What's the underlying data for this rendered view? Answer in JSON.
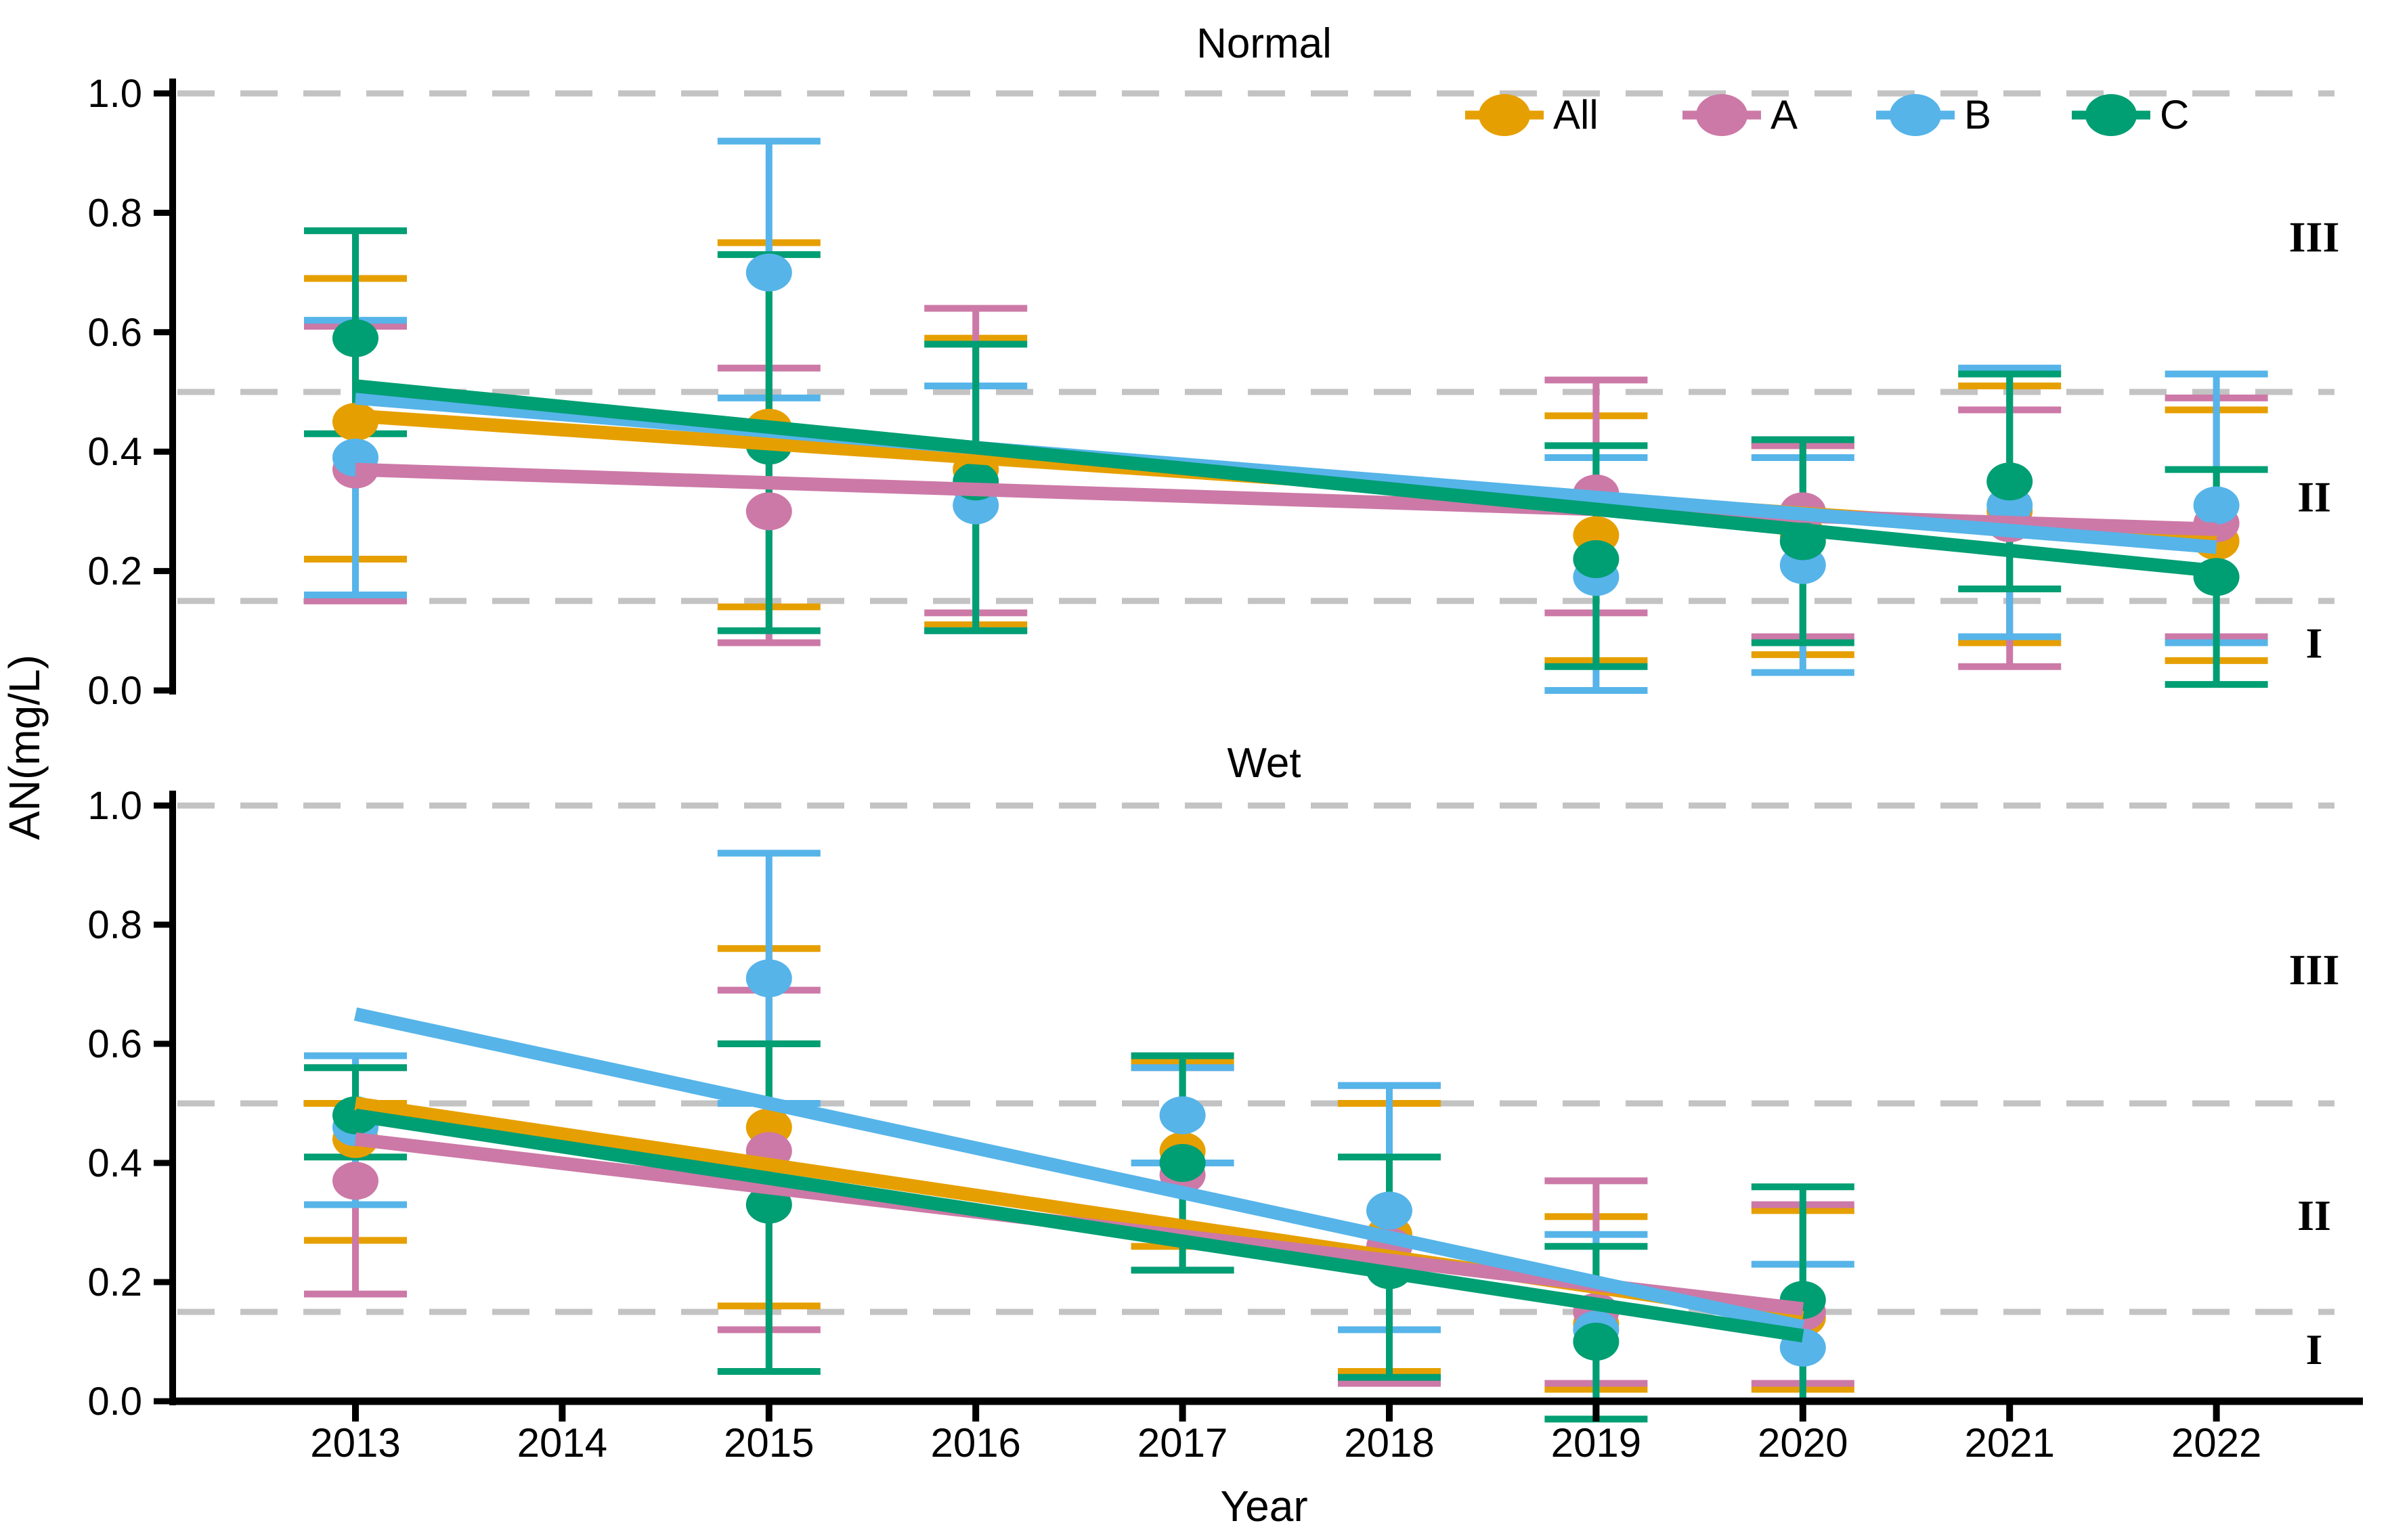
{
  "page": {
    "background": "#FFFFFF"
  },
  "colors": {
    "all": "#E69F00",
    "a": "#CC79A7",
    "b": "#56B4E9",
    "c": "#009E73",
    "gridline": "#C3C3C3",
    "axis": "#000000",
    "text": "#000000"
  },
  "y_axis": {
    "label": "AN(mg/L)",
    "ticks": [
      "1.0",
      "0.8",
      "0.6",
      "0.4",
      "0.2",
      "0.0"
    ],
    "tick_values": [
      1.0,
      0.8,
      0.6,
      0.4,
      0.2,
      0.0
    ]
  },
  "x_axis": {
    "label": "Year",
    "ticks": [
      "2013",
      "2014",
      "2015",
      "2016",
      "2017",
      "2018",
      "2019",
      "2020",
      "2021",
      "2022"
    ]
  },
  "legend": {
    "items": [
      {
        "label": "All",
        "color": "#E69F00"
      },
      {
        "label": "A",
        "color": "#CC79A7"
      },
      {
        "label": "B",
        "color": "#56B4E9"
      },
      {
        "label": "C",
        "color": "#009E73"
      }
    ]
  },
  "reference_lines": [
    1.0,
    0.5,
    0.15
  ],
  "chart_data": [
    {
      "type": "pointrange",
      "title": "Normal",
      "ylabel": "AN(mg/L)",
      "ylim": [
        0.0,
        1.0
      ],
      "grid": "dashed reference lines at 1.0, 0.5, 0.15",
      "legend_position": "top-right inside panel",
      "zones": [
        {
          "label": "III",
          "at": 0.76
        },
        {
          "label": "II",
          "at": 0.325
        },
        {
          "label": "I",
          "at": 0.08
        }
      ],
      "series": [
        {
          "name": "All",
          "color": "#E69F00",
          "points": [
            {
              "x": 2013,
              "y": 0.45,
              "lo": 0.22,
              "hi": 0.69
            },
            {
              "x": 2015,
              "y": 0.44,
              "lo": 0.14,
              "hi": 0.75
            },
            {
              "x": 2016,
              "y": 0.37,
              "lo": 0.11,
              "hi": 0.59
            },
            {
              "x": 2019,
              "y": 0.26,
              "lo": 0.05,
              "hi": 0.46
            },
            {
              "x": 2020,
              "y": 0.26,
              "lo": 0.06,
              "hi": 0.41
            },
            {
              "x": 2021,
              "y": 0.3,
              "lo": 0.08,
              "hi": 0.51
            },
            {
              "x": 2022,
              "y": 0.25,
              "lo": 0.05,
              "hi": 0.47
            }
          ],
          "trend": {
            "x1": 2013,
            "y1": 0.46,
            "x2": 2022,
            "y2": 0.25
          }
        },
        {
          "name": "A",
          "color": "#CC79A7",
          "points": [
            {
              "x": 2013,
              "y": 0.37,
              "lo": 0.15,
              "hi": 0.61
            },
            {
              "x": 2015,
              "y": 0.3,
              "lo": 0.08,
              "hi": 0.54
            },
            {
              "x": 2016,
              "y": 0.34,
              "lo": 0.13,
              "hi": 0.64
            },
            {
              "x": 2019,
              "y": 0.33,
              "lo": 0.13,
              "hi": 0.52
            },
            {
              "x": 2020,
              "y": 0.3,
              "lo": 0.09,
              "hi": 0.41
            },
            {
              "x": 2021,
              "y": 0.28,
              "lo": 0.04,
              "hi": 0.47
            },
            {
              "x": 2022,
              "y": 0.28,
              "lo": 0.09,
              "hi": 0.49
            }
          ],
          "trend": {
            "x1": 2013,
            "y1": 0.37,
            "x2": 2022,
            "y2": 0.27
          }
        },
        {
          "name": "B",
          "color": "#56B4E9",
          "points": [
            {
              "x": 2013,
              "y": 0.39,
              "lo": 0.16,
              "hi": 0.62
            },
            {
              "x": 2015,
              "y": 0.7,
              "lo": 0.49,
              "hi": 0.92
            },
            {
              "x": 2016,
              "y": 0.31,
              "lo": 0.1,
              "hi": 0.51
            },
            {
              "x": 2019,
              "y": 0.19,
              "lo": 0.0,
              "hi": 0.39
            },
            {
              "x": 2020,
              "y": 0.21,
              "lo": 0.03,
              "hi": 0.39
            },
            {
              "x": 2021,
              "y": 0.31,
              "lo": 0.09,
              "hi": 0.54
            },
            {
              "x": 2022,
              "y": 0.31,
              "lo": 0.08,
              "hi": 0.53
            }
          ],
          "trend": {
            "x1": 2013,
            "y1": 0.49,
            "x2": 2022,
            "y2": 0.24
          }
        },
        {
          "name": "C",
          "color": "#009E73",
          "points": [
            {
              "x": 2013,
              "y": 0.59,
              "lo": 0.43,
              "hi": 0.77
            },
            {
              "x": 2015,
              "y": 0.41,
              "lo": 0.1,
              "hi": 0.73
            },
            {
              "x": 2016,
              "y": 0.35,
              "lo": 0.1,
              "hi": 0.58
            },
            {
              "x": 2019,
              "y": 0.22,
              "lo": 0.04,
              "hi": 0.41
            },
            {
              "x": 2020,
              "y": 0.25,
              "lo": 0.08,
              "hi": 0.42
            },
            {
              "x": 2021,
              "y": 0.35,
              "lo": 0.17,
              "hi": 0.53
            },
            {
              "x": 2022,
              "y": 0.19,
              "lo": 0.01,
              "hi": 0.37
            }
          ],
          "trend": {
            "x1": 2013,
            "y1": 0.51,
            "x2": 2022,
            "y2": 0.2
          }
        }
      ]
    },
    {
      "type": "pointrange",
      "title": "Wet",
      "ylabel": "AN(mg/L)",
      "ylim": [
        0.0,
        1.0
      ],
      "grid": "dashed reference lines at 1.0, 0.5, 0.15",
      "zones": [
        {
          "label": "III",
          "at": 0.725
        },
        {
          "label": "II",
          "at": 0.3125
        },
        {
          "label": "I",
          "at": 0.0875
        }
      ],
      "series": [
        {
          "name": "All",
          "color": "#E69F00",
          "points": [
            {
              "x": 2013,
              "y": 0.44,
              "lo": 0.27,
              "hi": 0.5
            },
            {
              "x": 2015,
              "y": 0.46,
              "lo": 0.16,
              "hi": 0.76
            },
            {
              "x": 2017,
              "y": 0.42,
              "lo": 0.26,
              "hi": 0.57
            },
            {
              "x": 2018,
              "y": 0.28,
              "lo": 0.05,
              "hi": 0.5
            },
            {
              "x": 2019,
              "y": 0.13,
              "lo": 0.02,
              "hi": 0.31
            },
            {
              "x": 2020,
              "y": 0.14,
              "lo": 0.02,
              "hi": 0.32
            }
          ],
          "trend": {
            "x1": 2013,
            "y1": 0.5,
            "x2": 2020,
            "y2": 0.14
          }
        },
        {
          "name": "A",
          "color": "#CC79A7",
          "points": [
            {
              "x": 2013,
              "y": 0.37,
              "lo": 0.18,
              "hi": 0.56
            },
            {
              "x": 2015,
              "y": 0.42,
              "lo": 0.12,
              "hi": 0.69
            },
            {
              "x": 2017,
              "y": 0.38,
              "lo": 0.22,
              "hi": 0.56
            },
            {
              "x": 2018,
              "y": 0.26,
              "lo": 0.03,
              "hi": 0.53
            },
            {
              "x": 2019,
              "y": 0.15,
              "lo": 0.03,
              "hi": 0.37
            },
            {
              "x": 2020,
              "y": 0.15,
              "lo": 0.03,
              "hi": 0.33
            }
          ],
          "trend": {
            "x1": 2013,
            "y1": 0.44,
            "x2": 2020,
            "y2": 0.155
          }
        },
        {
          "name": "B",
          "color": "#56B4E9",
          "points": [
            {
              "x": 2013,
              "y": 0.46,
              "lo": 0.33,
              "hi": 0.58
            },
            {
              "x": 2015,
              "y": 0.71,
              "lo": 0.5,
              "hi": 0.92
            },
            {
              "x": 2017,
              "y": 0.48,
              "lo": 0.4,
              "hi": 0.56
            },
            {
              "x": 2018,
              "y": 0.32,
              "lo": 0.12,
              "hi": 0.53
            },
            {
              "x": 2019,
              "y": 0.12,
              "lo": 0.0,
              "hi": 0.28
            },
            {
              "x": 2020,
              "y": 0.09,
              "lo": 0.0,
              "hi": 0.23
            }
          ],
          "trend": {
            "x1": 2013,
            "y1": 0.65,
            "x2": 2020,
            "y2": 0.125
          }
        },
        {
          "name": "C",
          "color": "#009E73",
          "points": [
            {
              "x": 2013,
              "y": 0.48,
              "lo": 0.41,
              "hi": 0.56
            },
            {
              "x": 2015,
              "y": 0.33,
              "lo": 0.05,
              "hi": 0.6
            },
            {
              "x": 2017,
              "y": 0.4,
              "lo": 0.22,
              "hi": 0.58
            },
            {
              "x": 2018,
              "y": 0.22,
              "lo": 0.04,
              "hi": 0.41
            },
            {
              "x": 2019,
              "y": 0.1,
              "lo": -0.03,
              "hi": 0.26
            },
            {
              "x": 2020,
              "y": 0.17,
              "lo": 0.0,
              "hi": 0.36
            }
          ],
          "trend": {
            "x1": 2013,
            "y1": 0.48,
            "x2": 2020,
            "y2": 0.11
          }
        }
      ]
    }
  ]
}
